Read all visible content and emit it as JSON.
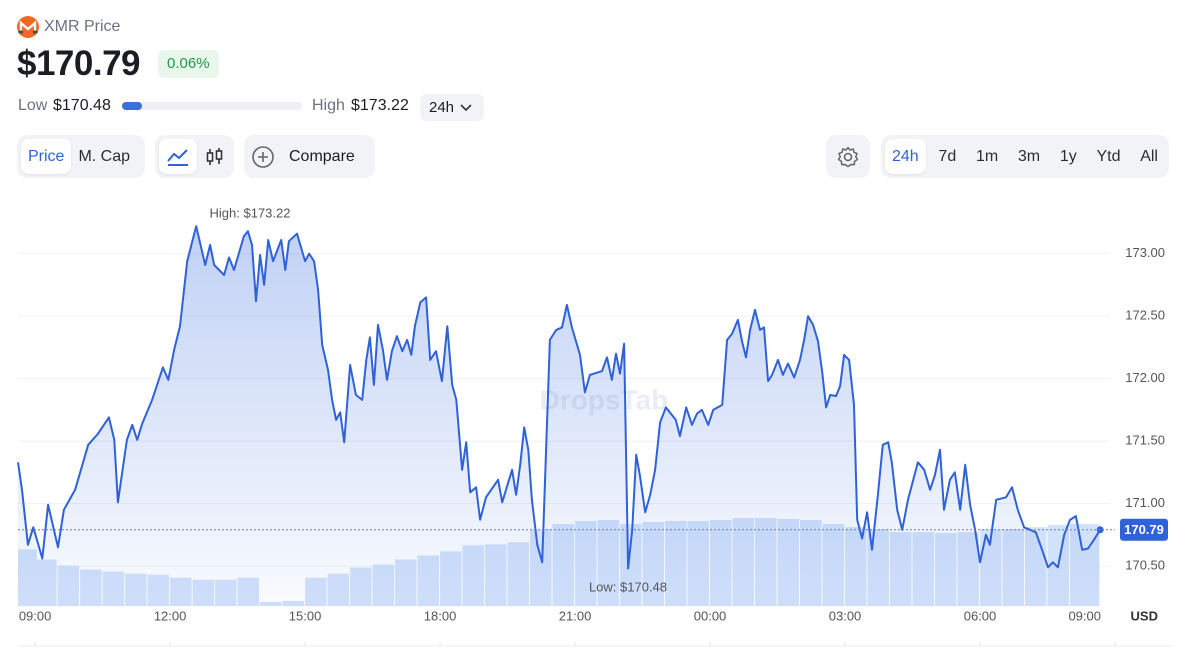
{
  "ui": {
    "asset": "XMR Price",
    "price": "$170.79",
    "change": "0.06%",
    "low_label": "Low",
    "low": "$170.48",
    "high_label": "High",
    "high": "$173.22",
    "range": "24h",
    "tabs": [
      "Price",
      "M. Cap"
    ],
    "compare": "Compare",
    "timeframes": [
      "24h",
      "7d",
      "1m",
      "3m",
      "1y",
      "Ytd",
      "All"
    ],
    "watermark": "DropsTab"
  },
  "chart_data": {
    "type": "line",
    "x": [
      -0.38,
      -0.29,
      -0.16,
      -0.04,
      0.16,
      0.29,
      0.51,
      0.64,
      0.89,
      1.18,
      1.4,
      1.64,
      1.76,
      1.84,
      2.04,
      2.16,
      2.27,
      2.38,
      2.6,
      2.84,
      2.96,
      3.09,
      3.22,
      3.38,
      3.58,
      3.78,
      3.89,
      3.98,
      4.2,
      4.31,
      4.42,
      4.64,
      4.73,
      4.82,
      4.91,
      5.0,
      5.09,
      5.18,
      5.29,
      5.47,
      5.56,
      5.64,
      5.82,
      6.0,
      6.09,
      6.2,
      6.29,
      6.38,
      6.51,
      6.6,
      6.69,
      6.78,
      6.87,
      7.0,
      7.13,
      7.27,
      7.36,
      7.44,
      7.53,
      7.62,
      7.73,
      7.82,
      7.93,
      8.04,
      8.16,
      8.27,
      8.36,
      8.44,
      8.56,
      8.69,
      8.78,
      8.91,
      9.04,
      9.16,
      9.27,
      9.36,
      9.49,
      9.58,
      9.67,
      9.8,
      9.89,
      10.02,
      10.29,
      10.38,
      10.6,
      10.69,
      10.78,
      10.87,
      10.96,
      11.04,
      11.16,
      11.27,
      11.38,
      11.44,
      11.58,
      11.71,
      11.82,
      11.93,
      12.11,
      12.22,
      12.33,
      12.6,
      12.71,
      12.82,
      12.91,
      13.0,
      13.09,
      13.18,
      13.27,
      13.36,
      13.44,
      13.56,
      13.67,
      13.78,
      13.89,
      14.02,
      14.24,
      14.33,
      14.47,
      14.6,
      14.71,
      14.82,
      14.96,
      15.07,
      15.27,
      15.38,
      15.49,
      15.62,
      15.71,
      15.8,
      15.89,
      16.0,
      16.11,
      16.2,
      16.29,
      16.38,
      16.51,
      16.62,
      16.73,
      16.87,
      17.0,
      17.09,
      17.18,
      17.29,
      17.4,
      17.49,
      17.58,
      17.67,
      17.8,
      17.89,
      17.98,
      18.09,
      18.2,
      18.27,
      18.38,
      18.49,
      18.6,
      18.73,
      18.84,
      18.96,
      19.04,
      19.16,
      19.27,
      19.4,
      19.62,
      19.76,
      19.89,
      20.0,
      20.11,
      20.2,
      20.33,
      20.44,
      20.56,
      20.67,
      20.78,
      20.89,
      21.0,
      21.13,
      21.22,
      21.36,
      21.58,
      21.71,
      21.84,
      21.98,
      22.24,
      22.38,
      22.51,
      22.62,
      22.73,
      22.87,
      23.0,
      23.13,
      23.27,
      23.4,
      23.53,
      23.67
    ],
    "series": [
      {
        "color": "#2f62d8",
        "values": [
          171.33,
          171.11,
          170.67,
          170.81,
          170.56,
          170.99,
          170.65,
          170.95,
          171.11,
          171.47,
          171.56,
          171.69,
          171.51,
          171.01,
          171.51,
          171.63,
          171.51,
          171.64,
          171.83,
          172.09,
          171.99,
          172.23,
          172.42,
          172.94,
          173.22,
          172.91,
          173.07,
          172.91,
          172.83,
          172.97,
          172.87,
          173.14,
          173.18,
          173.07,
          172.62,
          172.99,
          172.75,
          173.11,
          172.94,
          173.11,
          172.87,
          173.1,
          173.16,
          172.94,
          173.0,
          172.94,
          172.71,
          172.27,
          172.07,
          171.83,
          171.67,
          171.73,
          171.49,
          172.11,
          171.87,
          171.83,
          172.15,
          172.33,
          171.95,
          172.43,
          172.23,
          171.99,
          172.22,
          172.34,
          172.22,
          172.31,
          172.19,
          172.42,
          172.61,
          172.65,
          172.15,
          172.22,
          171.98,
          172.42,
          171.95,
          171.83,
          171.27,
          171.49,
          171.09,
          171.13,
          170.87,
          171.05,
          171.19,
          171.01,
          171.27,
          171.07,
          171.31,
          171.61,
          171.43,
          171.03,
          170.67,
          170.53,
          171.69,
          172.31,
          172.39,
          172.41,
          172.59,
          172.41,
          172.19,
          171.89,
          172.03,
          172.06,
          172.17,
          171.99,
          172.2,
          172.04,
          172.28,
          170.48,
          170.79,
          171.39,
          171.23,
          170.93,
          171.07,
          171.27,
          171.65,
          171.77,
          171.67,
          171.54,
          171.77,
          171.63,
          171.72,
          171.75,
          171.63,
          171.75,
          171.79,
          172.31,
          172.36,
          172.47,
          172.3,
          172.17,
          172.39,
          172.55,
          172.39,
          172.41,
          171.98,
          172.03,
          172.15,
          172.03,
          172.12,
          172.01,
          172.15,
          172.31,
          172.5,
          172.43,
          172.3,
          172.06,
          171.77,
          171.87,
          171.86,
          171.94,
          172.19,
          172.15,
          171.79,
          170.87,
          170.72,
          170.93,
          170.63,
          171.07,
          171.47,
          171.49,
          171.33,
          170.95,
          170.79,
          171.03,
          171.33,
          171.27,
          171.11,
          171.23,
          171.43,
          170.95,
          171.19,
          171.25,
          170.95,
          171.31,
          170.99,
          170.79,
          170.53,
          170.75,
          170.67,
          171.03,
          171.05,
          171.13,
          170.95,
          170.81,
          170.77,
          170.63,
          170.49,
          170.53,
          170.49,
          170.75,
          170.87,
          170.9,
          170.63,
          170.64,
          170.71,
          170.79
        ]
      }
    ],
    "volume": {
      "color": "#d3e2fb",
      "x": [
        -0.19,
        0.25,
        0.75,
        1.25,
        1.75,
        2.25,
        2.75,
        3.25,
        3.75,
        4.25,
        4.75,
        5.25,
        5.75,
        6.25,
        6.75,
        7.25,
        7.75,
        8.25,
        8.75,
        9.25,
        9.75,
        10.25,
        10.75,
        11.25,
        11.75,
        12.25,
        12.75,
        13.25,
        13.75,
        14.25,
        14.75,
        15.25,
        15.75,
        16.25,
        16.75,
        17.25,
        17.75,
        18.25,
        18.75,
        19.25,
        19.75,
        20.25,
        20.75,
        21.25,
        21.75,
        22.25,
        22.75,
        23.25,
        23.58
      ],
      "values": [
        56,
        46,
        40,
        36,
        34,
        32,
        31,
        28,
        26,
        26,
        28,
        4,
        5,
        28,
        32,
        38,
        41,
        46,
        50,
        54,
        60,
        61,
        63,
        76,
        81,
        84,
        85,
        81,
        83,
        84,
        84,
        85,
        87,
        87,
        86,
        85,
        81,
        78,
        76,
        73,
        73,
        72,
        73,
        76,
        76,
        78,
        80,
        81,
        81
      ]
    },
    "xlim": [
      -0.38,
      24
    ],
    "xticks": [
      {
        "value": 0,
        "label": "09:00"
      },
      {
        "value": 3,
        "label": "12:00"
      },
      {
        "value": 6,
        "label": "15:00"
      },
      {
        "value": 9,
        "label": "18:00"
      },
      {
        "value": 12,
        "label": "21:00"
      },
      {
        "value": 15,
        "label": "00:00"
      },
      {
        "value": 18,
        "label": "03:00"
      },
      {
        "value": 21,
        "label": "06:00"
      },
      {
        "value": 24,
        "label": "09:00"
      }
    ],
    "ylim": [
      170.18,
      173.47
    ],
    "yticks": [
      {
        "value": 170.5,
        "label": "170.50"
      },
      {
        "value": 171,
        "label": "171.00"
      },
      {
        "value": 171.5,
        "label": "171.50"
      },
      {
        "value": 172,
        "label": "172.00"
      },
      {
        "value": 172.5,
        "label": "172.50"
      },
      {
        "value": 173,
        "label": "173.00"
      }
    ],
    "y_unit": "USD",
    "current": {
      "value": 170.79,
      "label": "170.79"
    },
    "annotations": [
      "High: $173.22",
      "Low: $170.48"
    ],
    "grid": true
  }
}
